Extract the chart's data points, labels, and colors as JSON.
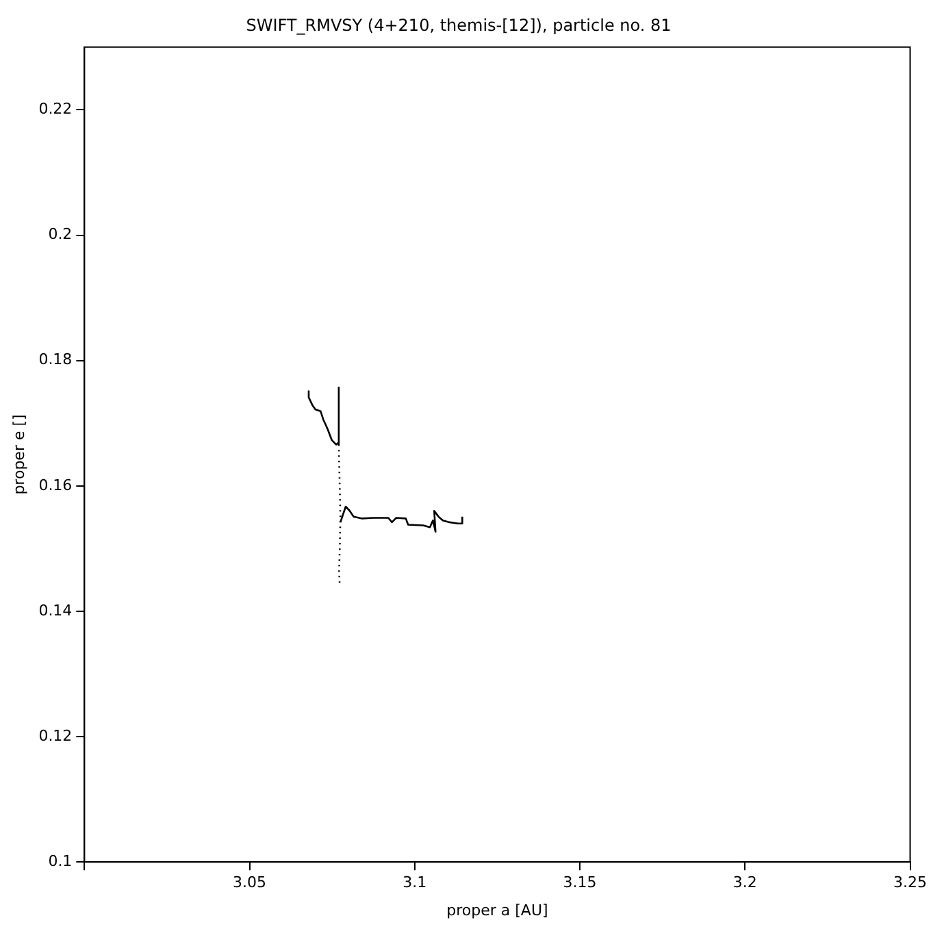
{
  "chart_data": {
    "type": "line",
    "title": "SWIFT_RMVSY (4+210, themis-[12]), particle no. 81",
    "xlabel": "proper a [AU]",
    "ylabel": "proper e []",
    "xlim": [
      3.0,
      3.25
    ],
    "xticks": [
      {
        "value": 3.0,
        "label": null
      },
      3.05,
      3.1,
      3.15,
      3.2,
      3.25
    ],
    "ylim": [
      0.1,
      0.23
    ],
    "yticks": [
      0.1,
      0.12,
      0.14,
      0.16,
      0.18,
      0.2,
      0.22
    ],
    "grid": false,
    "legend": false,
    "marker": "none",
    "series": [
      {
        "color": "#000000",
        "line_style": "solid",
        "x": [
          3.0679,
          3.0679,
          3.069,
          3.0699,
          3.0715,
          3.0723,
          3.0736,
          3.0749,
          3.0762,
          3.077,
          3.077,
          3.077
        ],
        "values": [
          0.1751,
          0.1741,
          0.1729,
          0.1722,
          0.1719,
          0.1706,
          0.1691,
          0.1673,
          0.1666,
          0.1669,
          0.1757,
          0.1666
        ]
      },
      {
        "color": "#000000",
        "line_style": "dotted",
        "x": [
          3.077,
          3.0775,
          3.0773,
          3.0771,
          3.0773
        ],
        "values": [
          0.1666,
          0.155,
          0.15,
          0.1465,
          0.144
        ]
      },
      {
        "color": "#000000",
        "line_style": "solid",
        "x": [
          3.0775,
          3.0782,
          3.0791,
          3.0802,
          3.0815,
          3.0841,
          3.0874,
          3.092,
          3.0931,
          3.0944,
          3.0973,
          3.098,
          3.1026,
          3.1046,
          3.1055,
          3.1063,
          3.1059,
          3.1072,
          3.1085,
          3.1105,
          3.1131,
          3.1142,
          3.1144
        ],
        "values": [
          0.1542,
          0.1553,
          0.1567,
          0.1561,
          0.1551,
          0.1548,
          0.1549,
          0.1549,
          0.1542,
          0.1549,
          0.1548,
          0.1538,
          0.1537,
          0.1534,
          0.1545,
          0.1527,
          0.156,
          0.1551,
          0.1545,
          0.1542,
          0.154,
          0.154,
          0.1551
        ]
      }
    ]
  }
}
